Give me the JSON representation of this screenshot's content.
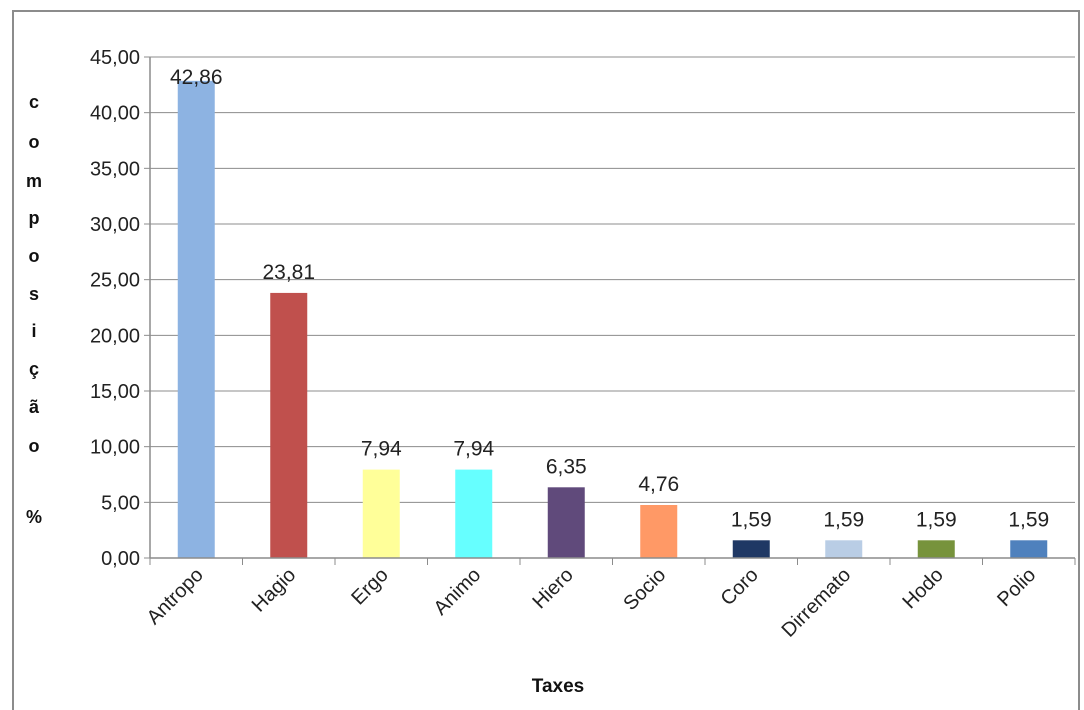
{
  "chart_data": {
    "type": "bar",
    "categories": [
      "Antropo",
      "Hagio",
      "Ergo",
      "Animo",
      "Hiero",
      "Socio",
      "Coro",
      "Dirremato",
      "Hodo",
      "Polio"
    ],
    "values": [
      42.86,
      23.81,
      7.94,
      7.94,
      6.35,
      4.76,
      1.59,
      1.59,
      1.59,
      1.59
    ],
    "data_labels": [
      "42,86",
      "23,81",
      "7,94",
      "7,94",
      "6,35",
      "4,76",
      "1,59",
      "1,59",
      "1,59",
      "1,59"
    ],
    "colors": [
      "#8DB3E2",
      "#C0504D",
      "#FFFF99",
      "#66FFFF",
      "#604A7B",
      "#FF9966",
      "#1F3864",
      "#B9CDE5",
      "#77933C",
      "#4F81BD"
    ],
    "yticks": [
      "0,00",
      "5,00",
      "10,00",
      "15,00",
      "20,00",
      "25,00",
      "30,00",
      "35,00",
      "40,00",
      "45,00"
    ],
    "ylim": [
      0,
      45
    ],
    "ylabel_letters": [
      "c",
      "o",
      "m",
      "p",
      "o",
      "s",
      "i",
      "ç",
      "ã",
      "o",
      "%"
    ],
    "xlabel": "Taxes",
    "grid": true,
    "legend": "none"
  }
}
